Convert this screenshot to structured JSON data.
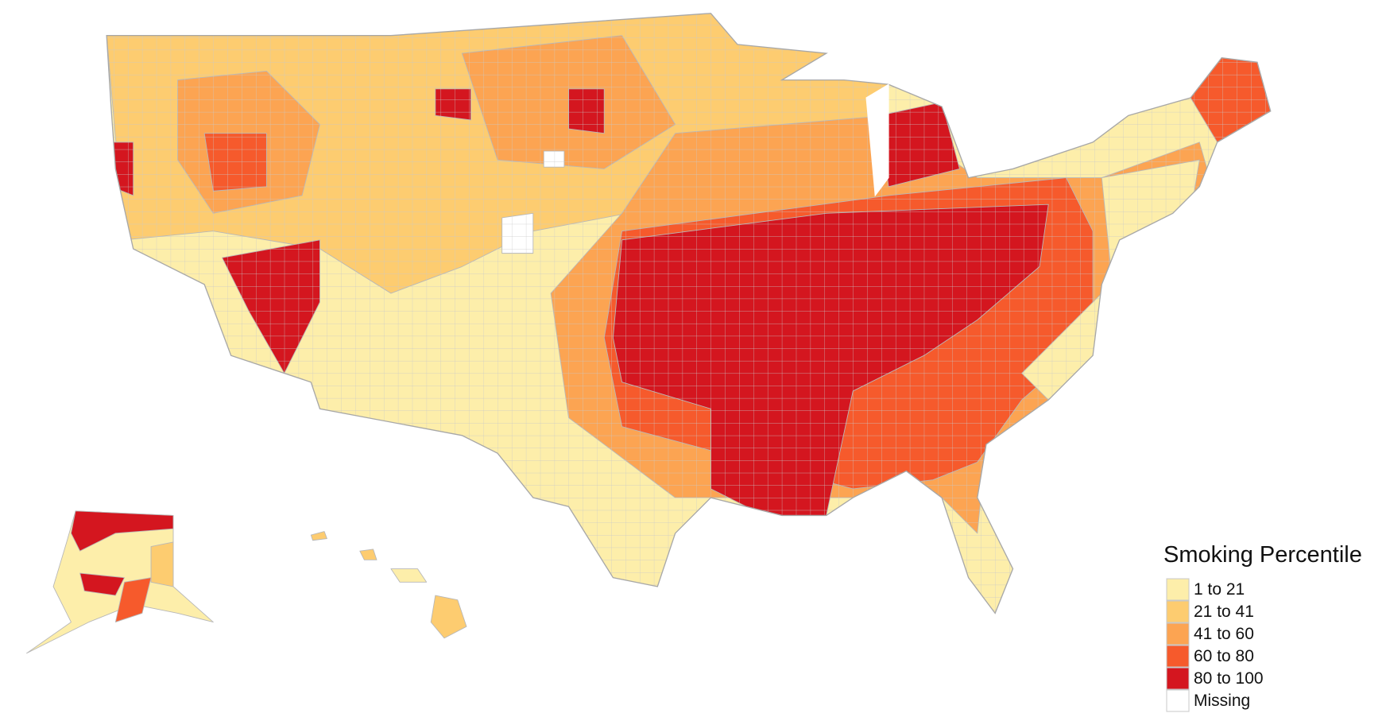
{
  "legend": {
    "title": "Smoking Percentile",
    "items": [
      {
        "label": "1 to 21",
        "color": "#fdeeaa"
      },
      {
        "label": "21 to 41",
        "color": "#fdcc70"
      },
      {
        "label": "41 to 60",
        "color": "#fca452"
      },
      {
        "label": "60 to 80",
        "color": "#f65a2c"
      },
      {
        "label": "80 to 100",
        "color": "#d4161f"
      },
      {
        "label": "Missing",
        "color": "#ffffff"
      }
    ]
  }
}
